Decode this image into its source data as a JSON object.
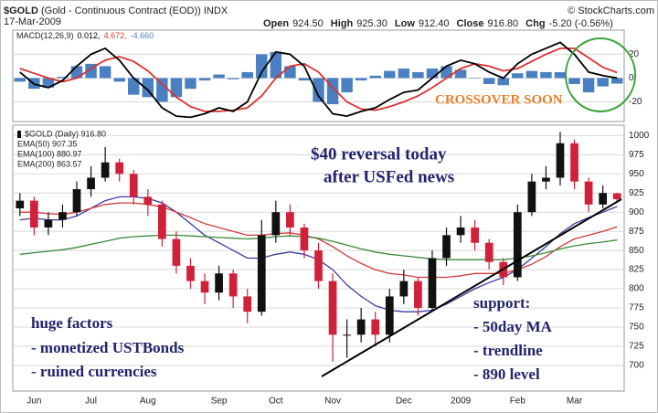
{
  "header": {
    "symbol": "$GOLD",
    "description": "(Gold - Continuous Contract (EOD))",
    "exchange": "INDX",
    "date": "17-Mar-2009",
    "quote": [
      {
        "label": "Open",
        "value": "924.50"
      },
      {
        "label": "High",
        "value": "925.30"
      },
      {
        "label": "Low",
        "value": "912.40"
      },
      {
        "label": "Close",
        "value": "916.80"
      },
      {
        "label": "Chg",
        "value": "-5.20 (-0.56%)"
      }
    ],
    "source": "© StockCharts.com"
  },
  "annotations": [
    "CROSSOVER SOON",
    "$40 reversal today",
    "after USFed news",
    "huge factors",
    "- monetized USTBonds",
    "- ruined currencies",
    "support:",
    "- 50day MA",
    "- trendline",
    "- 890 level"
  ],
  "chart_data": [
    {
      "type": "macd",
      "legend_title": "MACD(12,26,9)",
      "legend": [
        "0.012,",
        "4.672,",
        "-4.660"
      ],
      "ylim": [
        -35,
        38
      ],
      "yticks": [
        -20,
        0,
        20
      ],
      "grid": true,
      "series": [
        {
          "kind": "histogram",
          "color": "#4a7fc1",
          "values": [
            -3,
            -9,
            -8,
            1,
            10,
            12,
            10,
            -3,
            -14,
            -16,
            -20,
            -16,
            -9,
            -2,
            3,
            -1,
            5,
            20,
            22,
            10,
            -2,
            -20,
            -22,
            -12,
            -2,
            2,
            6,
            8,
            5,
            8,
            10,
            7,
            0,
            -5,
            -6,
            4,
            6,
            5,
            5,
            -5,
            -12,
            -7,
            -4.66
          ]
        },
        {
          "kind": "line",
          "color": "#e03030",
          "values": [
            8,
            4,
            0,
            -3,
            0,
            8,
            15,
            18,
            14,
            6,
            -5,
            -16,
            -24,
            -28,
            -28,
            -27,
            -25,
            -15,
            0,
            10,
            12,
            5,
            -8,
            -20,
            -26,
            -27,
            -24,
            -20,
            -15,
            -8,
            0,
            8,
            12,
            10,
            6,
            8,
            14,
            20,
            25,
            25,
            17,
            9,
            4.672
          ]
        },
        {
          "kind": "line",
          "color": "#000000",
          "values": [
            5,
            -5,
            -8,
            -2,
            10,
            20,
            25,
            15,
            0,
            -10,
            -25,
            -32,
            -33,
            -30,
            -25,
            -28,
            -20,
            5,
            22,
            20,
            10,
            -15,
            -30,
            -32,
            -28,
            -25,
            -18,
            -12,
            -10,
            0,
            10,
            15,
            12,
            5,
            0,
            12,
            20,
            25,
            30,
            20,
            5,
            2,
            0.012
          ]
        }
      ]
    },
    {
      "type": "candlestick",
      "legend_label": "$GOLD (Daily) 916.80",
      "up_color": "#111111",
      "down_color": "#d0203a",
      "ylim": [
        670,
        1010
      ],
      "yticks": [
        700,
        725,
        750,
        775,
        800,
        825,
        850,
        875,
        900,
        925,
        950,
        975,
        1000
      ],
      "grid": true,
      "categories": [
        null,
        "Jun",
        null,
        null,
        null,
        "Jul",
        null,
        null,
        null,
        "Aug",
        null,
        null,
        null,
        null,
        "Sep",
        null,
        null,
        null,
        "Oct",
        null,
        null,
        null,
        "Nov",
        null,
        null,
        null,
        null,
        "Dec",
        null,
        null,
        null,
        "2009",
        null,
        null,
        null,
        "Feb",
        null,
        null,
        null,
        "Mar",
        null,
        null,
        null
      ],
      "open": [
        905,
        915,
        880,
        890,
        900,
        930,
        945,
        965,
        950,
        920,
        910,
        865,
        830,
        810,
        795,
        820,
        790,
        770,
        870,
        900,
        880,
        850,
        810,
        740,
        740,
        760,
        740,
        790,
        810,
        775,
        840,
        870,
        880,
        860,
        835,
        815,
        900,
        940,
        945,
        990,
        940,
        910,
        924.5
      ],
      "high": [
        925,
        920,
        900,
        910,
        940,
        960,
        985,
        970,
        955,
        930,
        915,
        875,
        840,
        820,
        830,
        825,
        800,
        890,
        915,
        910,
        885,
        860,
        820,
        760,
        775,
        770,
        800,
        825,
        815,
        850,
        880,
        895,
        890,
        865,
        840,
        910,
        950,
        960,
        1005,
        995,
        945,
        935,
        925.3
      ],
      "low": [
        895,
        870,
        870,
        880,
        895,
        920,
        940,
        940,
        910,
        895,
        855,
        820,
        800,
        780,
        785,
        775,
        755,
        765,
        860,
        870,
        840,
        800,
        705,
        710,
        730,
        725,
        730,
        780,
        765,
        770,
        830,
        860,
        850,
        825,
        805,
        810,
        895,
        930,
        935,
        930,
        900,
        905,
        912.4
      ],
      "close": [
        915,
        880,
        890,
        900,
        930,
        945,
        965,
        950,
        920,
        910,
        865,
        830,
        810,
        795,
        820,
        790,
        770,
        870,
        900,
        880,
        850,
        810,
        740,
        740,
        760,
        740,
        790,
        810,
        775,
        840,
        870,
        880,
        860,
        835,
        815,
        900,
        940,
        945,
        990,
        940,
        910,
        925,
        916.8
      ],
      "series": [
        {
          "name": "EMA(50) 907.35",
          "color": "#3a3aa0",
          "values": [
            890,
            892,
            890,
            890,
            895,
            905,
            915,
            920,
            920,
            918,
            912,
            900,
            885,
            870,
            860,
            850,
            840,
            840,
            845,
            848,
            845,
            838,
            825,
            805,
            790,
            778,
            772,
            770,
            770,
            772,
            780,
            790,
            800,
            808,
            815,
            825,
            840,
            855,
            872,
            885,
            893,
            900,
            907.35
          ]
        },
        {
          "name": "EMA(100) 880.97",
          "color": "#d23a3a",
          "values": [
            900,
            900,
            898,
            897,
            900,
            905,
            910,
            912,
            912,
            910,
            907,
            900,
            893,
            885,
            880,
            875,
            870,
            870,
            872,
            873,
            870,
            865,
            855,
            843,
            833,
            825,
            820,
            818,
            815,
            815,
            815,
            817,
            820,
            820,
            820,
            825,
            832,
            842,
            855,
            865,
            870,
            875,
            880.97
          ]
        },
        {
          "name": "EMA(200) 863.57",
          "color": "#3a8a3a",
          "values": [
            845,
            847,
            849,
            851,
            854,
            858,
            862,
            866,
            868,
            869,
            870,
            870,
            869,
            868,
            867,
            866,
            865,
            866,
            868,
            869,
            868,
            866,
            862,
            857,
            852,
            848,
            845,
            843,
            841,
            839,
            838,
            838,
            838,
            838,
            838,
            840,
            843,
            847,
            852,
            856,
            859,
            861,
            863.57
          ]
        }
      ]
    }
  ]
}
